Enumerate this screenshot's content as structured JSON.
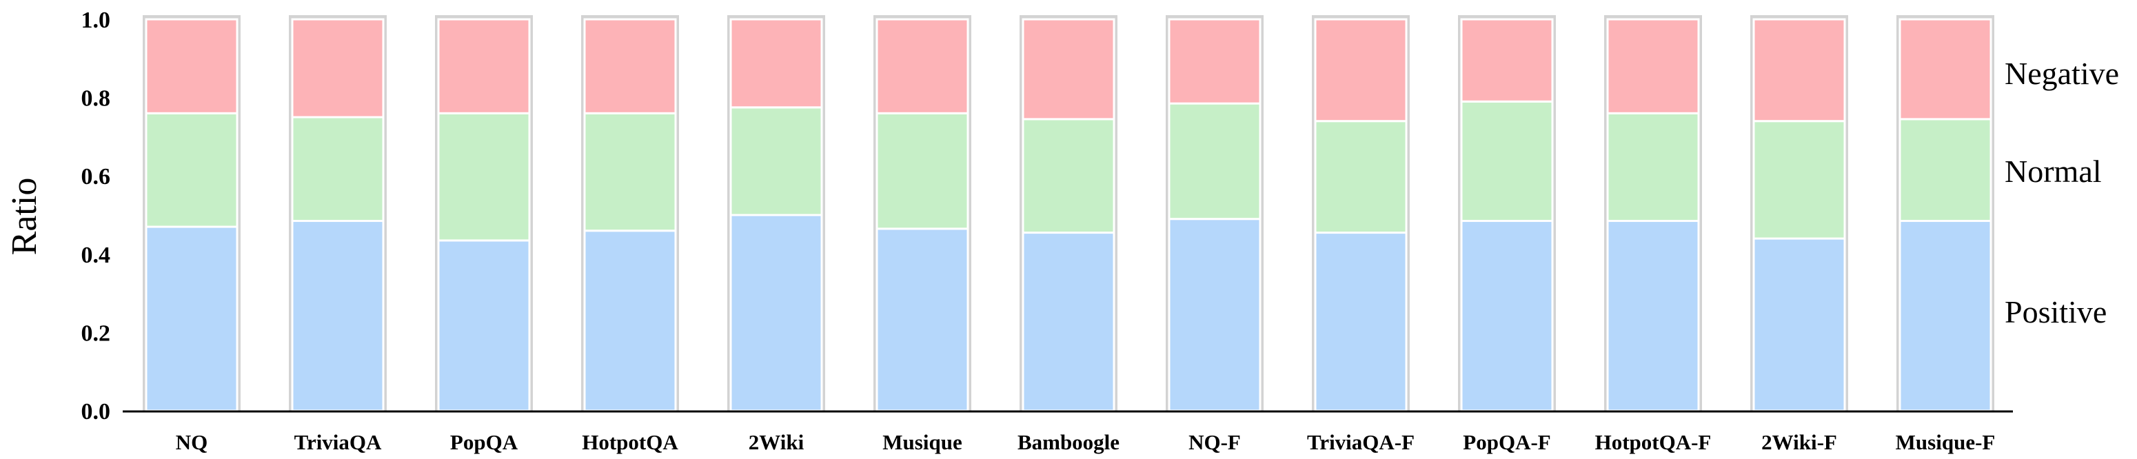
{
  "chart_data": {
    "type": "bar",
    "stacked": true,
    "title": "",
    "xlabel": "",
    "ylabel": "Ratio",
    "ylim": [
      0,
      1.0
    ],
    "yticks": [
      "0.0",
      "0.2",
      "0.4",
      "0.6",
      "0.8",
      "1.0"
    ],
    "grid": false,
    "legend_position": "right",
    "categories": [
      "NQ",
      "TriviaQA",
      "PopQA",
      "HotpotQA",
      "2Wiki",
      "Musique",
      "Bamboogle",
      "NQ-F",
      "TriviaQA-F",
      "PopQA-F",
      "HotpotQA-F",
      "2Wiki-F",
      "Musique-F"
    ],
    "series": [
      {
        "name": "Positive",
        "color": "#b5d7fb",
        "values": [
          0.47,
          0.485,
          0.435,
          0.46,
          0.5,
          0.465,
          0.455,
          0.49,
          0.455,
          0.485,
          0.485,
          0.44,
          0.485
        ]
      },
      {
        "name": "Normal",
        "color": "#c6efc7",
        "values": [
          0.29,
          0.265,
          0.325,
          0.3,
          0.275,
          0.295,
          0.29,
          0.295,
          0.285,
          0.305,
          0.275,
          0.3,
          0.26
        ]
      },
      {
        "name": "Negative",
        "color": "#fdb3b7",
        "values": [
          0.24,
          0.25,
          0.24,
          0.24,
          0.225,
          0.24,
          0.255,
          0.215,
          0.26,
          0.21,
          0.24,
          0.26,
          0.255
        ]
      }
    ]
  }
}
